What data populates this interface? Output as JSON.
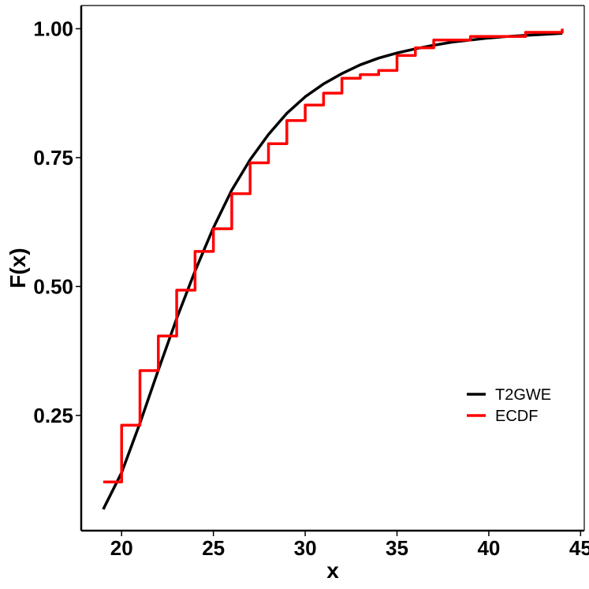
{
  "chart_data": {
    "type": "line",
    "title": "",
    "xlabel": "x",
    "ylabel": "F(x)",
    "xlim": [
      17.8,
      45.2
    ],
    "ylim": [
      0.0265,
      1.045
    ],
    "xticks": [
      20,
      25,
      30,
      35,
      40,
      45
    ],
    "xtick_labels": [
      "20",
      "25",
      "30",
      "35",
      "40",
      "45"
    ],
    "yticks": [
      0.25,
      0.5,
      0.75,
      1.0
    ],
    "ytick_labels": [
      "0.25",
      "0.50",
      "0.75",
      "1.00"
    ],
    "grid": false,
    "legend_position": "right",
    "series": [
      {
        "name": "T2GWE",
        "color": "#000000",
        "kind": "smooth",
        "x": [
          19,
          20,
          21,
          22,
          23,
          24,
          25,
          26,
          27,
          28,
          29,
          30,
          31,
          32,
          33,
          34,
          35,
          36,
          37,
          38,
          39,
          40,
          41,
          42,
          43,
          44
        ],
        "values": [
          0.068,
          0.139,
          0.235,
          0.338,
          0.438,
          0.53,
          0.614,
          0.687,
          0.746,
          0.795,
          0.836,
          0.868,
          0.893,
          0.913,
          0.93,
          0.943,
          0.953,
          0.961,
          0.968,
          0.974,
          0.978,
          0.982,
          0.985,
          0.987,
          0.989,
          0.991
        ]
      },
      {
        "name": "ECDF",
        "color": "#ff0000",
        "kind": "step",
        "x": [
          19,
          20,
          21,
          22,
          23,
          24,
          25,
          26,
          27,
          28,
          29,
          30,
          31,
          32,
          33,
          34,
          35,
          36,
          37,
          39,
          42,
          44
        ],
        "values": [
          0.121,
          0.231,
          0.337,
          0.404,
          0.493,
          0.568,
          0.612,
          0.68,
          0.74,
          0.777,
          0.822,
          0.852,
          0.875,
          0.904,
          0.911,
          0.919,
          0.948,
          0.963,
          0.978,
          0.985,
          0.993,
          1.0
        ]
      }
    ]
  }
}
